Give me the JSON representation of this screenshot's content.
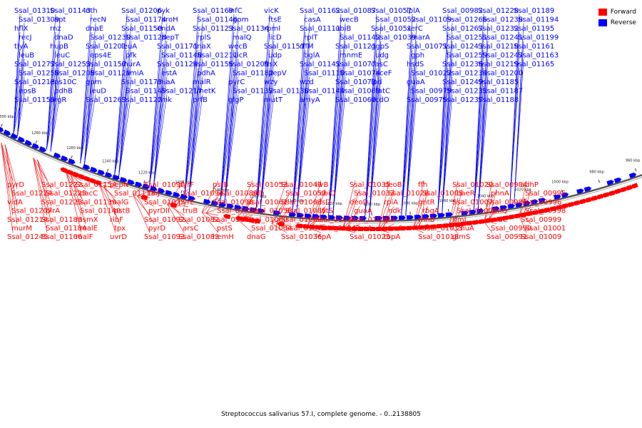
{
  "caption": "Streptococcus salivarius 57.I, complete genome. - 0..2138805",
  "legend": [
    {
      "label": "Forward",
      "color": "#ff0000"
    },
    {
      "label": "Reverse",
      "color": "#0000ff"
    }
  ],
  "scale_ticks": [
    "1300 kbp",
    "1280 kbp",
    "1260 kbp",
    "1240 kbp",
    "1220 kbp",
    "1200 kbp",
    "1180 kbp",
    "1160 kbp",
    "1140 kbp",
    "1120 kbp",
    "1100 kbp",
    "1080 kbp",
    "1060 kbp",
    "1040 kbp",
    "1020 kbp",
    "1000 kbp",
    "980 kbp",
    "960 kbp"
  ],
  "reverse_labels": [
    "Ssal_01310",
    "Ssal_01309",
    "hflX",
    "recJ",
    "tlyA",
    "leuB",
    "Ssal_01277",
    "Ssal_01258",
    "Ssal_01213",
    "epsB",
    "Ssal_01159",
    "Ssal_01143",
    "apt",
    "rnz",
    "dnaD",
    "hupB",
    "leuC",
    "Ssal_01253",
    "Ssal_01208",
    "eps10C",
    "pdhB",
    "argR",
    "nth",
    "recN",
    "dnaE",
    "Ssal_01230",
    "Ssal_01201",
    "eps4E",
    "Ssal_01157",
    "Ssal_01129",
    "gpm",
    "leuD",
    "Ssal_01263",
    "Ssal_01206",
    "Ssal_01174",
    "Ssal_01150",
    "Ssal_01128",
    "leuA",
    "pfk",
    "murA",
    "amiA",
    "Ssal_01173",
    "Ssal_01149",
    "Ssal_01127",
    "pyk",
    "aroH",
    "endA",
    "pepT",
    "Ssal_01171",
    "Ssal_01148",
    "Ssal_01124",
    "estA",
    "miaA",
    "Ssal_01217",
    "cmk",
    "Ssal_01169",
    "Ssal_01146",
    "Ssal_01123",
    "rplS",
    "dnaX",
    "Ssal_01211",
    "Ssal_01156",
    "pdhA",
    "malR",
    "metK",
    "prfB",
    "infC",
    "gpm",
    "Ssal_01134",
    "malQ",
    "wecB",
    "vicR",
    "Ssal_01209",
    "Ssal_01182",
    "pyrC",
    "Ssal_01132",
    "glgP",
    "vicK",
    "ftsE",
    "rpmI",
    "licD",
    "Ssal_01151",
    "udp",
    "ftsX",
    "pepV",
    "wzy",
    "Ssal_01130",
    "mutT",
    "Ssal_01162",
    "casA",
    "Ssal_01111",
    "rpIT",
    "rffM",
    "bglA",
    "Ssal_01141",
    "Ssal_01110",
    "wzd",
    "Ssal_01144",
    "amyA",
    "Ssal_01087",
    "wecB",
    "ubiB",
    "Ssal_01142",
    "Ssal_01121",
    "mnmE",
    "Ssal_01077",
    "Ssal_01074",
    "Ssal_01073",
    "Ssal_01069",
    "Ssal_01068",
    "Ssal_01057",
    "Ssal_01052",
    "Ssal_01051",
    "Ssal_01039",
    "ggpS",
    "udg",
    "casC",
    "aceF",
    "lpd",
    "tatC",
    "vcdO",
    "lplA",
    "Ssal_01109",
    "xerC",
    "marA",
    "Ssal_01071",
    "gph",
    "hsdS",
    "Ssal_01022",
    "guaA",
    "Ssal_00979",
    "Ssal_00975",
    "Ssal_00982",
    "Ssal_01266",
    "Ssal_01267",
    "Ssal_01251",
    "Ssal_01243",
    "Ssal_01259",
    "Ssal_01236",
    "Ssal_01234",
    "Ssal_01249",
    "Ssal_01231",
    "Ssal_01237",
    "Ssal_01228",
    "Ssal_01238",
    "Ssal_01232",
    "Ssal_01241",
    "Ssal_01218",
    "Ssal_01247",
    "Ssal_01219",
    "Ssal_01200",
    "Ssal_01185",
    "Ssal_01187",
    "Ssal_01188",
    "Ssal_01189",
    "Ssal_01194",
    "Ssal_01195",
    "Ssal_01199",
    "Ssal_01161",
    "Ssal_01163",
    "Ssal_01165"
  ],
  "forward_labels": [
    "pyrD",
    "Ssal_01224",
    "vidA",
    "Ssal_01207",
    "Ssal_01214",
    "murM",
    "Ssal_01245",
    "Ssal_01222",
    "Ssal_01223",
    "Ssal_01225",
    "birA",
    "Ssal_01183",
    "Ssal_01184",
    "Ssal_01166",
    "Ssal_01154",
    "dacC",
    "Ssal_01139",
    "Ssal_01140",
    "msmX",
    "malE",
    "malF",
    "pepN",
    "Ssal_01113",
    "malG",
    "pstB",
    "ribF",
    "tpx",
    "uvrD",
    "Ssal_01090",
    "thiJ",
    "Ssal_01075",
    "pyrDII",
    "Ssal_01092",
    "pyrD",
    "Ssal_01093",
    "pyrF",
    "Ssal_01094",
    "pyrE",
    "truB",
    "Ssal_01082",
    "arsC",
    "Ssal_01083",
    "pstB",
    "Ssal_01089",
    "Ssal_01098",
    "Ssal_01099",
    "Ssal_01100",
    "pstS",
    "hemH",
    "Ssal_01053",
    "adh",
    "Ssal_01061",
    "Ssal_01058",
    "Ssal_01060",
    "Ssal_01064",
    "dnaG",
    "Ssal_01049",
    "Ssal_01050",
    "Ssal_01063",
    "Ssal_01065",
    "Ssal_01066",
    "Ssal_01070",
    "Ssal_01036",
    "ilvB",
    "cbiO",
    "alsD",
    "lytS",
    "Ssal_01042",
    "Ssal_01043",
    "lepA",
    "Ssal_01035",
    "Ssal_01033",
    "deoD",
    "guaA",
    "Ssal_01030",
    "punA",
    "Ssal_01025",
    "deoB",
    "Ssal_01028",
    "rpiA",
    "ndk",
    "gid",
    "smf",
    "topA",
    "ffh",
    "Ssal_01005",
    "gntR",
    "rbgA",
    "rnhB",
    "Ssal_01013",
    "Ssal_01018",
    "Ssal_01020",
    "baeR",
    "Ssal_01007",
    "Ssal_01008",
    "rimL",
    "znuA",
    "glmS",
    "Ssal_00984",
    "phnA",
    "Ssal_00986",
    "ginQ",
    "umuC",
    "Ssal_00990",
    "Ssal_00991",
    "adhP",
    "Ssal_00995",
    "Ssal_00996",
    "Ssal_00998",
    "Ssal_00999",
    "Ssal_01001",
    "Ssal_01009"
  ]
}
